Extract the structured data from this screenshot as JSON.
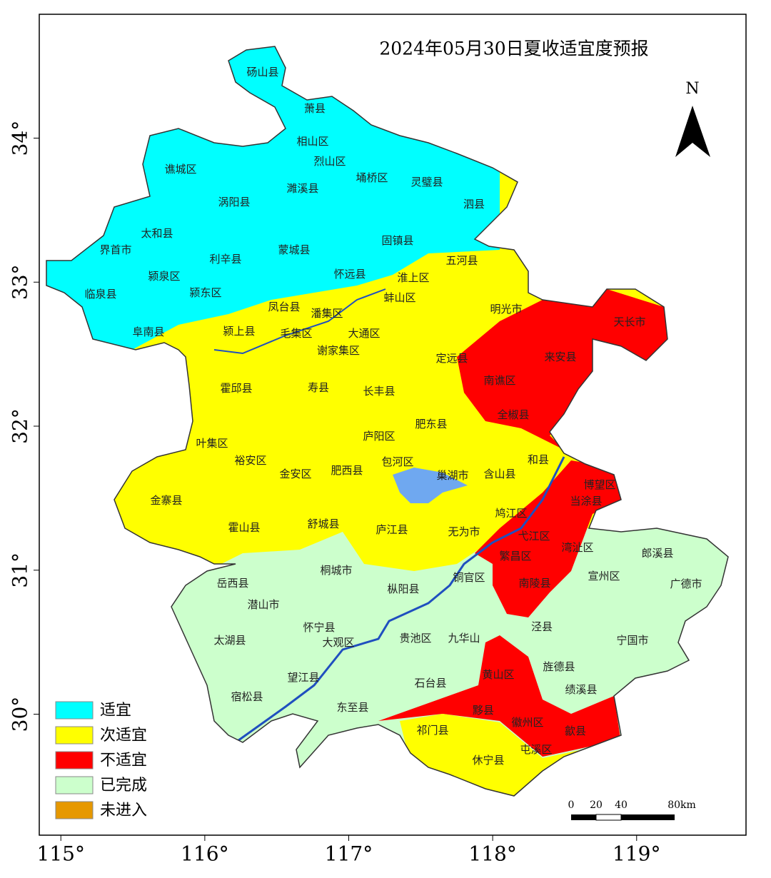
{
  "title": "2024年05月30日夏收适宜度预报",
  "north": "N",
  "map": {
    "lon_range": [
      114.85,
      119.76
    ],
    "lat_range": [
      29.16,
      34.86
    ],
    "lon_ticks": [
      {
        "value": 115,
        "label": "115°"
      },
      {
        "value": 116,
        "label": "116°"
      },
      {
        "value": 117,
        "label": "117°"
      },
      {
        "value": 118,
        "label": "118°"
      },
      {
        "value": 119,
        "label": "119°"
      }
    ],
    "lat_ticks": [
      {
        "value": 30,
        "label": "30°"
      },
      {
        "value": 31,
        "label": "31°"
      },
      {
        "value": 32,
        "label": "32°"
      },
      {
        "value": 33,
        "label": "33°"
      },
      {
        "value": 34,
        "label": "34°"
      }
    ]
  },
  "legend": [
    {
      "label": "适宜",
      "color": "#00ffff"
    },
    {
      "label": "次适宜",
      "color": "#ffff00"
    },
    {
      "label": "不适宜",
      "color": "#ff0000"
    },
    {
      "label": "已完成",
      "color": "#ccffcc"
    },
    {
      "label": "未进入",
      "color": "#e69800"
    }
  ],
  "scale_bar": {
    "labels": [
      "0",
      "20",
      "40",
      "80km"
    ]
  },
  "places": [
    "砀山县",
    "萧县",
    "相山区",
    "烈山区",
    "谯城区",
    "濉溪县",
    "埇桥区",
    "灵璧县",
    "泗县",
    "涡阳县",
    "固镇县",
    "太和县",
    "界首市",
    "利辛县",
    "蒙城县",
    "五河县",
    "怀远县",
    "颍泉区",
    "淮上区",
    "临泉县",
    "颍东区",
    "蚌山区",
    "凤台县",
    "潘集区",
    "明光市",
    "天长市",
    "阜南县",
    "颍上县",
    "毛集区",
    "大通区",
    "谢家集区",
    "定远县",
    "来安县",
    "南谯区",
    "霍邱县",
    "寿县",
    "长丰县",
    "全椒县",
    "肥东县",
    "庐阳区",
    "叶集区",
    "裕安区",
    "包河区",
    "和县",
    "金安区",
    "肥西县",
    "巢湖市",
    "含山县",
    "博望区",
    "金寨县",
    "当涂县",
    "鸠江区",
    "霍山县",
    "舒城县",
    "庐江县",
    "无为市",
    "弋江区",
    "湾沚区",
    "郎溪县",
    "繁昌区",
    "铜官区",
    "宣州区",
    "岳西县",
    "桐城市",
    "枞阳县",
    "南陵县",
    "广德市",
    "潜山市",
    "怀宁县",
    "泾县",
    "太湖县",
    "大观区",
    "贵池区",
    "九华山",
    "宁国市",
    "旌德县",
    "黄山区",
    "望江县",
    "石台县",
    "绩溪县",
    "宿松县",
    "东至县",
    "黟县",
    "徽州区",
    "歙县",
    "祁门县",
    "屯溪区",
    "休宁县"
  ]
}
